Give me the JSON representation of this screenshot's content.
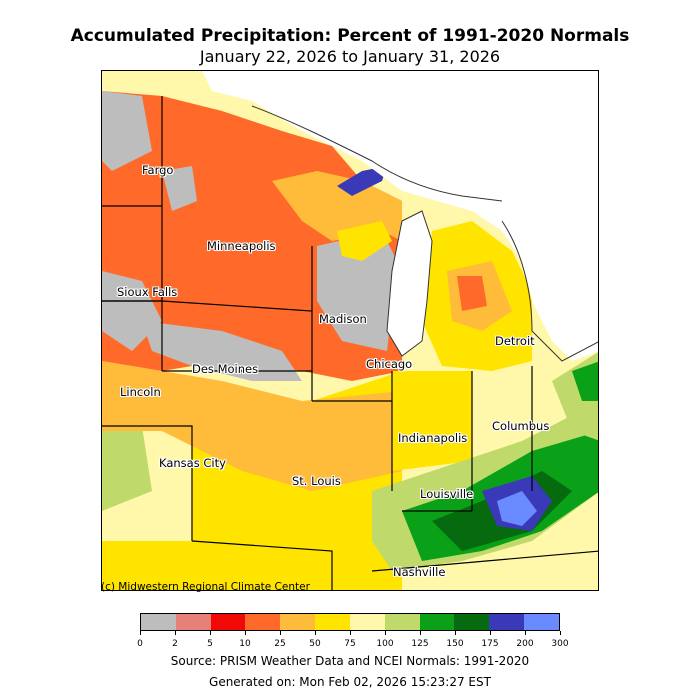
{
  "title": "Accumulated Precipitation: Percent of 1991-2020 Normals",
  "subtitle": "January 22, 2026 to January 31, 2026",
  "credit": "(c) Midwestern Regional Climate Center",
  "source": "Source: PRISM Weather Data and NCEI Normals: 1991-2020",
  "generated": "Generated on: Mon Feb 02, 2026 15:23:27 EST",
  "cities": [
    {
      "name": "Fargo"
    },
    {
      "name": "Minneapolis"
    },
    {
      "name": "Sioux Falls"
    },
    {
      "name": "Madison"
    },
    {
      "name": "Detroit"
    },
    {
      "name": "Chicago"
    },
    {
      "name": "Des Moines"
    },
    {
      "name": "Lincoln"
    },
    {
      "name": "Columbus"
    },
    {
      "name": "Indianapolis"
    },
    {
      "name": "Kansas City"
    },
    {
      "name": "St. Louis"
    },
    {
      "name": "Louisville"
    },
    {
      "name": "Nashville"
    }
  ],
  "legend": {
    "bins": [
      {
        "from": 0,
        "to": 2,
        "color": "#bdbdbd"
      },
      {
        "from": 2,
        "to": 5,
        "color": "#e8807a"
      },
      {
        "from": 5,
        "to": 10,
        "color": "#f00a05"
      },
      {
        "from": 10,
        "to": 25,
        "color": "#ff6a2a"
      },
      {
        "from": 25,
        "to": 50,
        "color": "#ffbb3a"
      },
      {
        "from": 50,
        "to": 75,
        "color": "#ffe400"
      },
      {
        "from": 75,
        "to": 100,
        "color": "#fff8aa"
      },
      {
        "from": 100,
        "to": 125,
        "color": "#bfd96a"
      },
      {
        "from": 125,
        "to": 150,
        "color": "#0aa018"
      },
      {
        "from": 150,
        "to": 175,
        "color": "#066a0e"
      },
      {
        "from": 175,
        "to": 200,
        "color": "#3a3ab8"
      },
      {
        "from": 200,
        "to": 300,
        "color": "#6a8aff"
      }
    ],
    "tick_labels": [
      "0",
      "2",
      "5",
      "10",
      "25",
      "50",
      "75",
      "100",
      "125",
      "150",
      "175",
      "200",
      "300"
    ]
  }
}
